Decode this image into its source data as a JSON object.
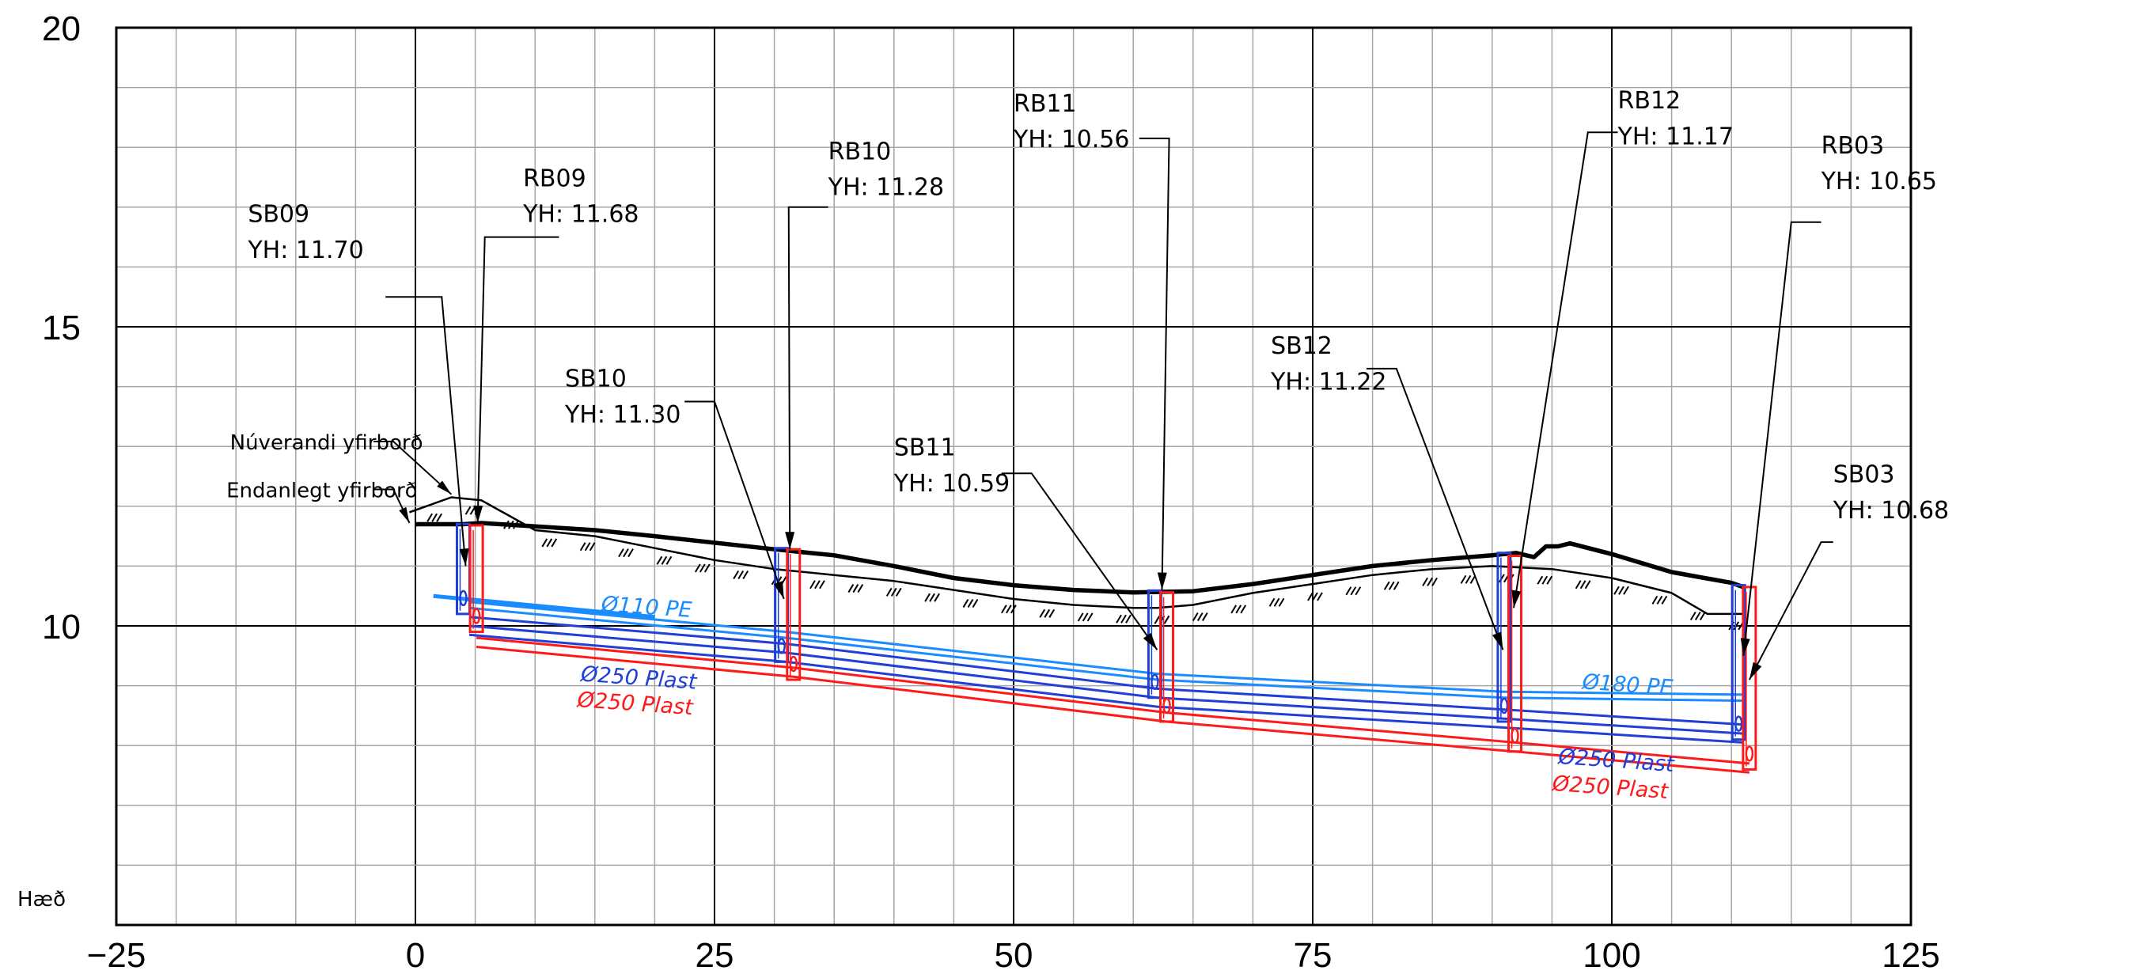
{
  "chart_data": {
    "type": "line",
    "xlim": [
      -25,
      125
    ],
    "ylim": [
      5,
      20
    ],
    "x_ticks": [
      "−25",
      "0",
      "25",
      "50",
      "75",
      "100",
      "125"
    ],
    "y_ticks": [
      "20",
      "15",
      "10"
    ],
    "ylabel": "Hæð",
    "grid": true,
    "surfaces": [
      {
        "name": "Endanlegt yfirborð",
        "x": [
          0,
          4,
          5.5,
          15,
          20,
          30,
          35,
          40,
          45,
          50,
          55,
          60,
          65,
          70,
          75,
          80,
          85,
          90,
          92,
          93.5,
          94.5,
          95.5,
          96.5,
          100,
          105,
          110,
          111
        ],
        "y": [
          11.7,
          11.7,
          11.72,
          11.6,
          11.5,
          11.28,
          11.18,
          11.0,
          10.8,
          10.68,
          10.6,
          10.56,
          10.58,
          10.7,
          10.85,
          11.0,
          11.1,
          11.18,
          11.22,
          11.15,
          11.33,
          11.33,
          11.38,
          11.2,
          10.9,
          10.72,
          10.65
        ]
      },
      {
        "name": "Núverandi yfirborð",
        "x": [
          -0.5,
          3,
          5.5,
          10,
          15,
          20,
          25,
          30,
          35,
          40,
          45,
          50,
          55,
          60,
          62,
          65,
          70,
          75,
          80,
          85,
          90,
          95,
          100,
          105,
          108,
          110,
          111
        ],
        "y": [
          11.9,
          12.15,
          12.1,
          11.6,
          11.5,
          11.3,
          11.1,
          10.95,
          10.85,
          10.75,
          10.6,
          10.45,
          10.35,
          10.3,
          10.3,
          10.35,
          10.55,
          10.7,
          10.85,
          10.95,
          11.0,
          10.95,
          10.8,
          10.55,
          10.2,
          10.2,
          10.2
        ]
      }
    ],
    "manholes": [
      {
        "id": "SB09",
        "color": "#1f3fd6",
        "x": 4.0,
        "top": 11.7,
        "bottom": 10.2,
        "label": "SB09",
        "yh": "YH: 11.70"
      },
      {
        "id": "RB09",
        "color": "#ff1a1a",
        "x": 5.1,
        "top": 11.68,
        "bottom": 9.9,
        "label": "RB09",
        "yh": "YH: 11.68"
      },
      {
        "id": "SB10",
        "color": "#1f3fd6",
        "x": 30.6,
        "top": 11.3,
        "bottom": 9.4,
        "label": "SB10",
        "yh": "YH: 11.30"
      },
      {
        "id": "RB10",
        "color": "#ff1a1a",
        "x": 31.6,
        "top": 11.28,
        "bottom": 9.1,
        "label": "RB10",
        "yh": "YH: 11.28"
      },
      {
        "id": "SB11",
        "color": "#1f3fd6",
        "x": 61.8,
        "top": 10.59,
        "bottom": 8.8,
        "label": "SB11",
        "yh": "YH: 10.59"
      },
      {
        "id": "RB11",
        "color": "#ff1a1a",
        "x": 62.8,
        "top": 10.56,
        "bottom": 8.4,
        "label": "RB11",
        "yh": "YH: 10.56"
      },
      {
        "id": "SB12",
        "color": "#1f3fd6",
        "x": 91.0,
        "top": 11.22,
        "bottom": 8.4,
        "label": "SB12",
        "yh": "YH: 11.22"
      },
      {
        "id": "RB12",
        "color": "#ff1a1a",
        "x": 91.9,
        "top": 11.17,
        "bottom": 7.9,
        "label": "RB12",
        "yh": "YH: 11.17"
      },
      {
        "id": "SB03",
        "color": "#1f3fd6",
        "x": 110.6,
        "top": 10.68,
        "bottom": 8.1,
        "label": "SB03",
        "yh": "YH: 10.68"
      },
      {
        "id": "RB03",
        "color": "#ff1a1a",
        "x": 111.5,
        "top": 10.65,
        "bottom": 7.6,
        "label": "RB03",
        "yh": "YH: 10.65"
      }
    ],
    "pipes": [
      {
        "name": "Ø110 PE",
        "color": "#1a8cff",
        "width": 5,
        "x": [
          1.5,
          20.0
        ],
        "y": [
          10.5,
          10.15
        ]
      },
      {
        "name": "Ø110 PE",
        "color": "#1a8cff",
        "width": 3,
        "x": [
          4.5,
          31.0,
          62.0,
          91.0,
          111.0
        ],
        "y": [
          10.4,
          9.9,
          9.2,
          8.9,
          8.85
        ]
      },
      {
        "name": "Ø110 PE",
        "color": "#1a8cff",
        "width": 3,
        "x": [
          4.5,
          31.0,
          62.0,
          91.0,
          111.0
        ],
        "y": [
          10.3,
          9.8,
          9.1,
          8.8,
          8.75
        ]
      },
      {
        "name": "Ø250 Plast",
        "color": "#1f3fd6",
        "width": 3,
        "x": [
          4.5,
          31.0,
          62.0,
          91.0,
          111.0
        ],
        "y": [
          10.15,
          9.7,
          8.95,
          8.6,
          8.35
        ]
      },
      {
        "name": "Ø250 Plast",
        "color": "#1f3fd6",
        "width": 3,
        "x": [
          4.5,
          31.0,
          62.0,
          91.0,
          111.0
        ],
        "y": [
          10.0,
          9.55,
          8.8,
          8.45,
          8.2
        ]
      },
      {
        "name": "Ø250 Plast",
        "color": "#1f3fd6",
        "width": 3,
        "x": [
          4.5,
          31.0,
          62.0,
          91.0,
          111.0
        ],
        "y": [
          9.85,
          9.4,
          8.65,
          8.3,
          8.05
        ]
      },
      {
        "name": "Ø250 Plast",
        "color": "#ff1a1a",
        "width": 3,
        "x": [
          5.1,
          31.6,
          62.8,
          91.9,
          111.5
        ],
        "y": [
          9.8,
          9.3,
          8.55,
          8.05,
          7.7
        ]
      },
      {
        "name": "Ø250 Plast",
        "color": "#ff1a1a",
        "width": 3,
        "x": [
          5.1,
          31.6,
          62.8,
          91.9,
          111.5
        ],
        "y": [
          9.65,
          9.15,
          8.4,
          7.9,
          7.55
        ]
      }
    ],
    "pipe_labels": [
      {
        "text": "Ø110 PE",
        "color": "#1a8cff",
        "x": 15.5,
        "y": 10.25
      },
      {
        "text": "Ø250 Plast",
        "color": "#1f3fd6",
        "x": 13.8,
        "y": 9.08
      },
      {
        "text": "Ø250 Plast",
        "color": "#ff1a1a",
        "x": 13.5,
        "y": 8.65
      },
      {
        "text": "Ø180 PE",
        "color": "#1a8cff",
        "x": 97.5,
        "y": 8.95
      },
      {
        "text": "Ø250 Plast",
        "color": "#1f3fd6",
        "x": 95.5,
        "y": 7.7
      },
      {
        "text": "Ø250 Plast",
        "color": "#ff1a1a",
        "x": 95.0,
        "y": 7.25
      }
    ],
    "callouts": [
      {
        "id": "SB09",
        "text_x": -14.0,
        "line1_y": 16.75,
        "line2_y": 16.15,
        "shoulder_x": -2.5,
        "shoulder_y": 15.5,
        "elbow_x": 2.2,
        "target_x": 4.2,
        "target_y": 11.0
      },
      {
        "id": "RB09",
        "text_x": 9.0,
        "line1_y": 17.35,
        "line2_y": 16.75,
        "shoulder_x": 12.0,
        "shoulder_y": 16.5,
        "elbow_x": 5.8,
        "target_x": 5.2,
        "target_y": 11.72
      },
      {
        "id": "RB10",
        "text_x": 34.5,
        "line1_y": 17.8,
        "line2_y": 17.2,
        "shoulder_x": 34.5,
        "shoulder_y": 17.0,
        "elbow_x": 31.2,
        "target_x": 31.3,
        "target_y": 11.28
      },
      {
        "id": "SB10",
        "text_x": 12.5,
        "line1_y": 14.0,
        "line2_y": 13.4,
        "shoulder_x": 22.5,
        "shoulder_y": 13.75,
        "elbow_x": 25.0,
        "target_x": 30.8,
        "target_y": 10.45
      },
      {
        "id": "RB11",
        "text_x": 50.0,
        "line1_y": 18.6,
        "line2_y": 18.0,
        "shoulder_x": 60.5,
        "shoulder_y": 18.15,
        "elbow_x": 63.0,
        "target_x": 62.4,
        "target_y": 10.6
      },
      {
        "id": "SB11",
        "text_x": 40.0,
        "line1_y": 12.85,
        "line2_y": 12.25,
        "shoulder_x": 49.0,
        "shoulder_y": 12.55,
        "elbow_x": 51.5,
        "target_x": 62.0,
        "target_y": 9.6
      },
      {
        "id": "RB12",
        "text_x": 100.5,
        "line1_y": 18.65,
        "line2_y": 18.05,
        "shoulder_x": 100.5,
        "shoulder_y": 18.25,
        "elbow_x": 98.0,
        "target_x": 91.8,
        "target_y": 10.3
      },
      {
        "id": "SB12",
        "text_x": 71.5,
        "line1_y": 14.55,
        "line2_y": 13.95,
        "shoulder_x": 79.5,
        "shoulder_y": 14.3,
        "elbow_x": 82.0,
        "target_x": 90.9,
        "target_y": 9.6
      },
      {
        "id": "RB03",
        "text_x": 117.5,
        "line1_y": 17.9,
        "line2_y": 17.3,
        "shoulder_x": 117.5,
        "shoulder_y": 16.75,
        "elbow_x": 115.0,
        "target_x": 111.0,
        "target_y": 9.5
      },
      {
        "id": "SB03",
        "text_x": 118.5,
        "line1_y": 12.4,
        "line2_y": 11.8,
        "shoulder_x": 118.5,
        "shoulder_y": 11.4,
        "elbow_x": 117.5,
        "target_x": 111.5,
        "target_y": 9.1
      }
    ],
    "surface_labels": [
      {
        "text": "Núverandi yfirborð",
        "text_x": -15.5,
        "y": 12.95,
        "shoulder_x": -3.5,
        "target_x": 3.0,
        "target_y": 12.2
      },
      {
        "text": "Endanlegt yfirborð",
        "text_x": -15.8,
        "y": 12.15,
        "shoulder_x": -3.5,
        "target_x": -0.5,
        "target_y": 11.72
      }
    ]
  }
}
